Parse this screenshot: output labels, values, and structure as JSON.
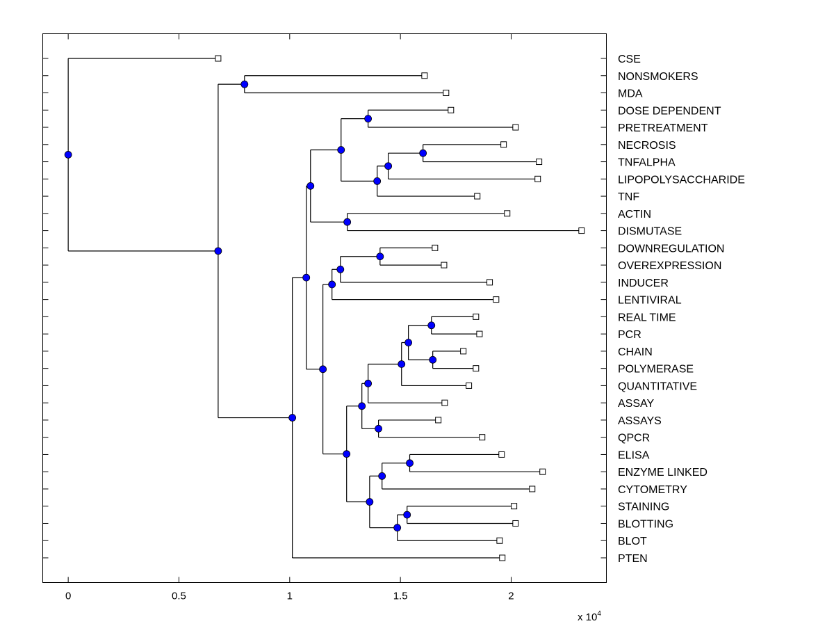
{
  "chart_data": {
    "type": "dendrogram",
    "orientation": "horizontal",
    "xlabel": "",
    "ylabel": "",
    "x_multiplier_label": "x 10",
    "x_multiplier_exponent": "4",
    "xlim": [
      -0.115,
      2.43
    ],
    "xticks": [
      0,
      0.5,
      1,
      1.5,
      2
    ],
    "xtick_labels": [
      "0",
      "0.5",
      "1",
      "1.5",
      "2"
    ],
    "leaves": [
      {
        "label": "CSE",
        "value": 0.677
      },
      {
        "label": "NONSMOKERS",
        "value": 1.609
      },
      {
        "label": "MDA",
        "value": 1.706
      },
      {
        "label": "DOSE DEPENDENT",
        "value": 1.728
      },
      {
        "label": "PRETREATMENT",
        "value": 2.02
      },
      {
        "label": "NECROSIS",
        "value": 1.966
      },
      {
        "label": "TNFALPHA",
        "value": 2.126
      },
      {
        "label": "LIPOPOLYSACCHARIDE",
        "value": 2.12
      },
      {
        "label": "TNF",
        "value": 1.847
      },
      {
        "label": "ACTIN",
        "value": 1.982
      },
      {
        "label": "DISMUTASE",
        "value": 2.318
      },
      {
        "label": "DOWNREGULATION",
        "value": 1.656
      },
      {
        "label": "OVEREXPRESSION",
        "value": 1.697
      },
      {
        "label": "INDUCER",
        "value": 1.903
      },
      {
        "label": "LENTIVIRAL",
        "value": 1.932
      },
      {
        "label": "REAL TIME",
        "value": 1.841
      },
      {
        "label": "PCR",
        "value": 1.857
      },
      {
        "label": "CHAIN",
        "value": 1.784
      },
      {
        "label": "POLYMERASE",
        "value": 1.841
      },
      {
        "label": "QUANTITATIVE",
        "value": 1.809
      },
      {
        "label": "ASSAY",
        "value": 1.7
      },
      {
        "label": "ASSAYS",
        "value": 1.671
      },
      {
        "label": "QPCR",
        "value": 1.869
      },
      {
        "label": "ELISA",
        "value": 1.957
      },
      {
        "label": "ENZYME LINKED",
        "value": 2.142
      },
      {
        "label": "CYTOMETRY",
        "value": 2.095
      },
      {
        "label": "STAINING",
        "value": 2.013
      },
      {
        "label": "BLOTTING",
        "value": 2.02
      },
      {
        "label": "BLOT",
        "value": 1.948
      },
      {
        "label": "PTEN",
        "value": 1.96
      }
    ],
    "tree": {
      "value": 0.0,
      "children": [
        {
          "leaf": 0
        },
        {
          "value": 0.677,
          "children": [
            {
              "value": 0.796,
              "children": [
                {
                  "leaf": 1
                },
                {
                  "leaf": 2
                }
              ]
            },
            {
              "value": 1.012,
              "children": [
                {
                  "value": 1.075,
                  "children": [
                    {
                      "value": 1.094,
                      "children": [
                        {
                          "value": 1.232,
                          "children": [
                            {
                              "value": 1.354,
                              "children": [
                                {
                                  "leaf": 3
                                },
                                {
                                  "leaf": 4
                                }
                              ]
                            },
                            {
                              "value": 1.395,
                              "children": [
                                {
                                  "value": 1.445,
                                  "children": [
                                    {
                                      "value": 1.602,
                                      "children": [
                                        {
                                          "leaf": 5
                                        },
                                        {
                                          "leaf": 6
                                        }
                                      ]
                                    },
                                    {
                                      "leaf": 7
                                    }
                                  ]
                                },
                                {
                                  "leaf": 8
                                }
                              ]
                            }
                          ]
                        },
                        {
                          "value": 1.26,
                          "children": [
                            {
                              "leaf": 9
                            },
                            {
                              "leaf": 10
                            }
                          ]
                        }
                      ]
                    },
                    {
                      "value": 1.15,
                      "children": [
                        {
                          "value": 1.191,
                          "children": [
                            {
                              "value": 1.229,
                              "children": [
                                {
                                  "value": 1.408,
                                  "children": [
                                    {
                                      "leaf": 11
                                    },
                                    {
                                      "leaf": 12
                                    }
                                  ]
                                },
                                {
                                  "leaf": 13
                                }
                              ]
                            },
                            {
                              "leaf": 14
                            }
                          ]
                        },
                        {
                          "value": 1.257,
                          "children": [
                            {
                              "value": 1.326,
                              "children": [
                                {
                                  "value": 1.354,
                                  "children": [
                                    {
                                      "value": 1.505,
                                      "children": [
                                        {
                                          "value": 1.536,
                                          "children": [
                                            {
                                              "value": 1.64,
                                              "children": [
                                                {
                                                  "leaf": 15
                                                },
                                                {
                                                  "leaf": 16
                                                }
                                              ]
                                            },
                                            {
                                              "value": 1.646,
                                              "children": [
                                                {
                                                  "leaf": 17
                                                },
                                                {
                                                  "leaf": 18
                                                }
                                              ]
                                            }
                                          ]
                                        },
                                        {
                                          "leaf": 19
                                        }
                                      ]
                                    },
                                    {
                                      "leaf": 20
                                    }
                                  ]
                                },
                                {
                                  "value": 1.401,
                                  "children": [
                                    {
                                      "leaf": 21
                                    },
                                    {
                                      "leaf": 22
                                    }
                                  ]
                                }
                              ]
                            },
                            {
                              "value": 1.361,
                              "children": [
                                {
                                  "value": 1.417,
                                  "children": [
                                    {
                                      "value": 1.542,
                                      "children": [
                                        {
                                          "leaf": 23
                                        },
                                        {
                                          "leaf": 24
                                        }
                                      ]
                                    },
                                    {
                                      "leaf": 25
                                    }
                                  ]
                                },
                                {
                                  "value": 1.486,
                                  "children": [
                                    {
                                      "value": 1.53,
                                      "children": [
                                        {
                                          "leaf": 26
                                        },
                                        {
                                          "leaf": 27
                                        }
                                      ]
                                    },
                                    {
                                      "leaf": 28
                                    }
                                  ]
                                }
                              ]
                            }
                          ]
                        }
                      ]
                    }
                  ]
                },
                {
                  "leaf": 29
                }
              ]
            }
          ]
        }
      ]
    },
    "colors": {
      "internal_node": "#0000ff",
      "leaf_marker_fill": "#ffffff",
      "line": "#000000"
    }
  }
}
